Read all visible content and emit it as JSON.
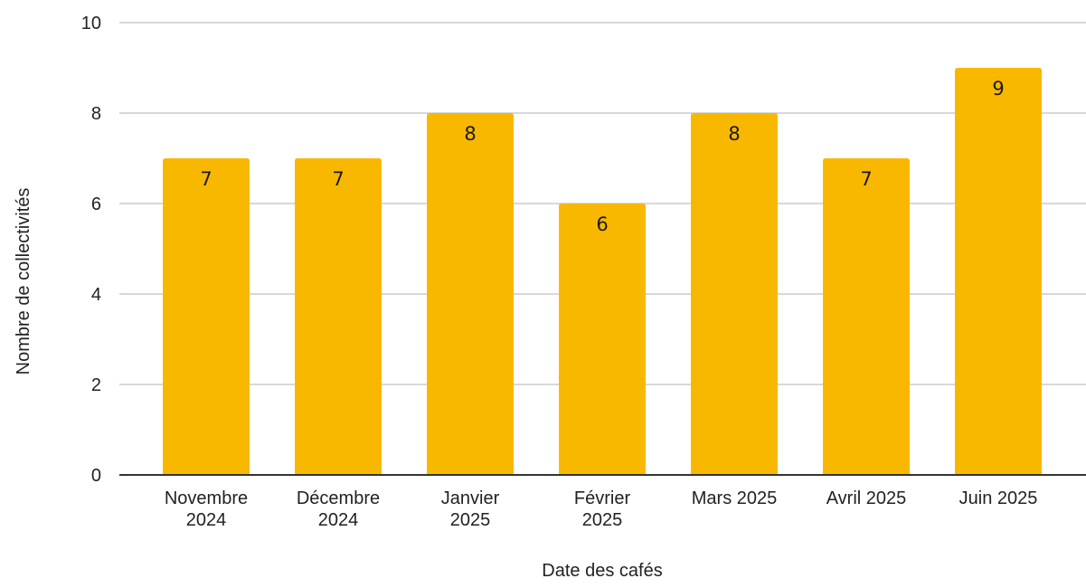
{
  "chart_data": {
    "type": "bar",
    "categories": [
      [
        "Novembre",
        "2024"
      ],
      [
        "Décembre",
        "2024"
      ],
      [
        "Janvier",
        "2025"
      ],
      [
        "Février",
        "2025"
      ],
      [
        "Mars 2025"
      ],
      [
        "Avril 2025"
      ],
      [
        "Juin 2025"
      ]
    ],
    "values": [
      7,
      7,
      8,
      6,
      8,
      7,
      9
    ],
    "data_labels": [
      "7",
      "7",
      "8",
      "6",
      "8",
      "7",
      "9"
    ],
    "xlabel": "Date des cafés",
    "ylabel": "Nombre de collectivités",
    "ylim": [
      0,
      10
    ],
    "yticks": [
      0,
      2,
      4,
      6,
      8,
      10
    ],
    "grid": true,
    "colors": {
      "bar": "#f9b800",
      "grid": "#cccccc",
      "axis": "#333333"
    }
  }
}
